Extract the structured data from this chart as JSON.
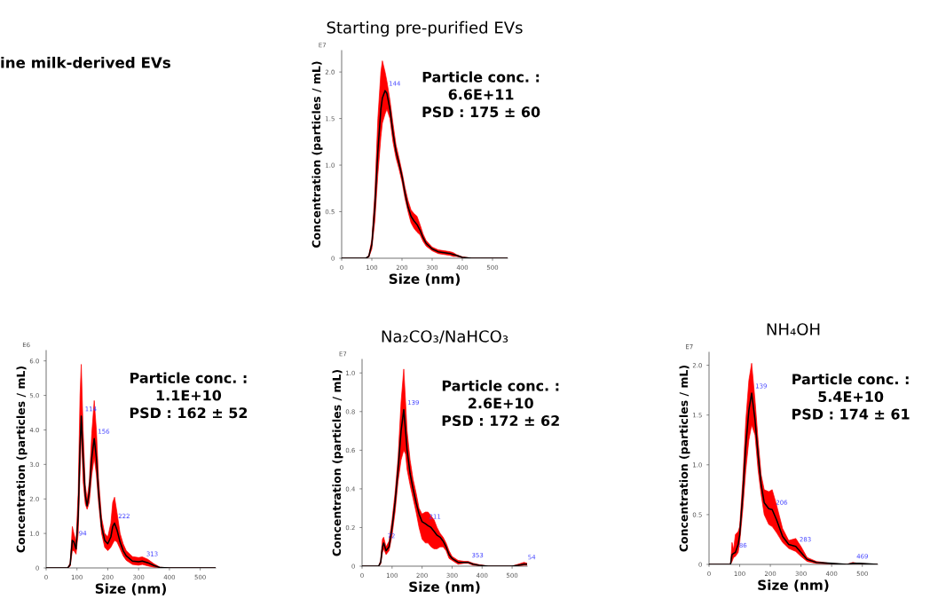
{
  "chart_data": [
    {
      "type": "line",
      "title": "Starting pre-purified EVs",
      "xlabel": "Size (nm)",
      "ylabel": "Concentration (particles / mL)",
      "xlim": [
        0,
        550
      ],
      "xticks": [
        0,
        100,
        200,
        300,
        400,
        500
      ],
      "ylim": [
        0,
        2.23
      ],
      "yticks": [
        0,
        {
          "value": 0.5,
          "label": "0.5"
        },
        {
          "value": 1,
          "label": "1.0"
        },
        {
          "value": 1.5,
          "label": "1.5"
        },
        {
          "value": 2,
          "label": "2.0"
        }
      ],
      "grid": false,
      "x": [
        0,
        60,
        80,
        90,
        100,
        110,
        120,
        130,
        135,
        144,
        150,
        160,
        170,
        180,
        190,
        200,
        210,
        220,
        230,
        240,
        250,
        260,
        270,
        280,
        300,
        320,
        340,
        360,
        370,
        380,
        400,
        430,
        460,
        500,
        550
      ],
      "series": [
        {
          "color": "#000000",
          "values": [
            0,
            0,
            0,
            0.02,
            0.15,
            0.55,
            1.15,
            1.6,
            1.72,
            1.8,
            1.77,
            1.6,
            1.35,
            1.15,
            1.02,
            0.88,
            0.7,
            0.55,
            0.45,
            0.4,
            0.36,
            0.3,
            0.22,
            0.16,
            0.1,
            0.07,
            0.06,
            0.05,
            0.04,
            0.03,
            0.01,
            0,
            0,
            0,
            0
          ],
          "upper": [
            0,
            0,
            0,
            0.03,
            0.2,
            0.7,
            1.5,
            2.0,
            2.12,
            2.0,
            1.9,
            1.7,
            1.45,
            1.22,
            1.08,
            0.93,
            0.76,
            0.62,
            0.52,
            0.48,
            0.45,
            0.36,
            0.26,
            0.19,
            0.12,
            0.09,
            0.08,
            0.07,
            0.06,
            0.04,
            0.015,
            0,
            0,
            0,
            0
          ],
          "lower": [
            0,
            0,
            0,
            0.01,
            0.1,
            0.4,
            0.9,
            1.3,
            1.45,
            1.55,
            1.6,
            1.5,
            1.25,
            1.08,
            0.96,
            0.82,
            0.64,
            0.5,
            0.38,
            0.32,
            0.28,
            0.25,
            0.18,
            0.13,
            0.08,
            0.05,
            0.04,
            0.03,
            0.02,
            0.02,
            0.005,
            0,
            0,
            0,
            0
          ]
        }
      ],
      "annotations": [
        "E7",
        "Particle conc. :\n6.6E+11\nPSD : 175 ± 60",
        "ine milk-derived EVs",
        {
          "text": "144",
          "x": 144,
          "y": 1.8
        }
      ]
    },
    {
      "type": "line",
      "xlabel": "Size (nm)",
      "ylabel": "Concentration (particles / mL)",
      "xlim": [
        0,
        550
      ],
      "xticks": [
        0,
        100,
        200,
        300,
        400,
        500
      ],
      "ylim": [
        0,
        6.3
      ],
      "yticks": [
        0,
        {
          "value": 1,
          "label": "1.0"
        },
        {
          "value": 2,
          "label": "2.0"
        },
        {
          "value": 3,
          "label": "3.0"
        },
        {
          "value": 4,
          "label": "4.0"
        },
        {
          "value": 5,
          "label": "5.0"
        },
        {
          "value": 6,
          "label": "6.0"
        }
      ],
      "grid": false,
      "x": [
        0,
        60,
        70,
        78,
        85,
        90,
        97,
        104,
        110,
        114,
        120,
        127,
        133,
        140,
        148,
        156,
        163,
        170,
        180,
        190,
        200,
        210,
        216,
        222,
        230,
        240,
        250,
        260,
        280,
        300,
        312,
        330,
        350,
        370,
        400,
        450,
        550
      ],
      "series": [
        {
          "color": "#000000",
          "values": [
            0,
            0,
            0,
            0.1,
            0.8,
            0.75,
            0.55,
            1.5,
            3.5,
            4.4,
            3.2,
            2.1,
            1.8,
            2.2,
            3.2,
            3.75,
            3.2,
            2.2,
            1.2,
            0.8,
            0.7,
            0.9,
            1.2,
            1.3,
            1.1,
            0.75,
            0.5,
            0.35,
            0.2,
            0.18,
            0.2,
            0.15,
            0.07,
            0.01,
            0,
            0,
            0
          ],
          "upper": [
            0,
            0,
            0,
            0.15,
            1.2,
            1.0,
            0.75,
            2.2,
            5.0,
            5.9,
            4.0,
            2.4,
            2.0,
            2.5,
            3.9,
            4.85,
            4.0,
            2.6,
            1.45,
            1.0,
            0.9,
            1.3,
            1.9,
            2.05,
            1.6,
            1.0,
            0.7,
            0.5,
            0.33,
            0.3,
            0.32,
            0.25,
            0.12,
            0.02,
            0,
            0,
            0
          ],
          "lower": [
            0,
            0,
            0,
            0.05,
            0.5,
            0.5,
            0.4,
            1.0,
            2.8,
            3.9,
            2.5,
            1.85,
            1.7,
            1.9,
            2.7,
            3.2,
            2.7,
            1.9,
            1.0,
            0.6,
            0.5,
            0.6,
            0.7,
            0.8,
            0.75,
            0.55,
            0.35,
            0.22,
            0.1,
            0.08,
            0.1,
            0.06,
            0.02,
            0,
            0,
            0,
            0
          ]
        }
      ],
      "annotations": [
        "E6",
        "Particle conc. :\n1.1E+10\nPSD : 162 ± 52",
        {
          "text": "94",
          "x": 94,
          "y": 0.8
        },
        {
          "text": "114",
          "x": 114,
          "y": 4.4
        },
        {
          "text": "156",
          "x": 156,
          "y": 3.75
        },
        {
          "text": "222",
          "x": 222,
          "y": 1.3
        },
        {
          "text": "313",
          "x": 313,
          "y": 0.2
        }
      ]
    },
    {
      "type": "line",
      "title": "Na₂CO₃/NaHCO₃",
      "xlabel": "Size (nm)",
      "ylabel": "Concentration (particles / mL)",
      "xlim": [
        0,
        550
      ],
      "xticks": [
        0,
        100,
        200,
        300,
        400,
        500
      ],
      "ylim": [
        0,
        1.07
      ],
      "yticks": [
        0,
        {
          "value": 0.2,
          "label": "0.2"
        },
        {
          "value": 0.4,
          "label": "0.4"
        },
        {
          "value": 0.6,
          "label": "0.6"
        },
        {
          "value": 0.8,
          "label": "0.8"
        },
        {
          "value": 1,
          "label": "1.0"
        }
      ],
      "grid": false,
      "x": [
        0,
        55,
        62,
        68,
        72,
        80,
        90,
        100,
        110,
        120,
        130,
        139,
        145,
        150,
        160,
        170,
        180,
        190,
        200,
        211,
        220,
        230,
        240,
        250,
        260,
        270,
        280,
        290,
        300,
        320,
        340,
        353,
        370,
        390,
        420,
        500,
        520,
        540,
        550
      ],
      "series": [
        {
          "color": "#000000",
          "values": [
            0,
            0,
            0.02,
            0.1,
            0.12,
            0.08,
            0.1,
            0.2,
            0.33,
            0.5,
            0.7,
            0.81,
            0.7,
            0.6,
            0.48,
            0.4,
            0.33,
            0.27,
            0.23,
            0.22,
            0.21,
            0.2,
            0.18,
            0.16,
            0.15,
            0.13,
            0.1,
            0.06,
            0.04,
            0.02,
            0.02,
            0.02,
            0.01,
            0.005,
            0,
            0,
            0.005,
            0.01,
            0.01
          ],
          "upper": [
            0,
            0,
            0.03,
            0.14,
            0.15,
            0.1,
            0.13,
            0.24,
            0.38,
            0.56,
            0.85,
            1.02,
            0.85,
            0.7,
            0.55,
            0.45,
            0.38,
            0.3,
            0.27,
            0.28,
            0.28,
            0.26,
            0.24,
            0.2,
            0.17,
            0.15,
            0.12,
            0.08,
            0.05,
            0.03,
            0.025,
            0.025,
            0.015,
            0.008,
            0,
            0,
            0.01,
            0.02,
            0.015
          ],
          "lower": [
            0,
            0,
            0.01,
            0.07,
            0.09,
            0.06,
            0.08,
            0.16,
            0.28,
            0.44,
            0.55,
            0.6,
            0.58,
            0.5,
            0.42,
            0.35,
            0.28,
            0.2,
            0.14,
            0.12,
            0.12,
            0.1,
            0.09,
            0.09,
            0.1,
            0.1,
            0.08,
            0.04,
            0.03,
            0.01,
            0.015,
            0.015,
            0.005,
            0.002,
            0,
            0,
            0,
            0.005,
            0.005
          ]
        }
      ],
      "annotations": [
        "E7",
        "Particle conc. :\n2.6E+10\nPSD : 172 ± 62",
        {
          "text": "72",
          "x": 72,
          "y": 0.12
        },
        {
          "text": "139",
          "x": 139,
          "y": 0.81
        },
        {
          "text": "211",
          "x": 211,
          "y": 0.22
        },
        {
          "text": "353",
          "x": 353,
          "y": 0.02
        },
        {
          "text": "54",
          "x": 540,
          "y": 0.01
        }
      ]
    },
    {
      "type": "line",
      "title": "NH₄OH",
      "xlabel": "Size (nm)",
      "ylabel": "Concentration (particles / mL)",
      "xlim": [
        0,
        550
      ],
      "xticks": [
        0,
        100,
        200,
        300,
        400,
        500
      ],
      "ylim": [
        0,
        2.13
      ],
      "yticks": [
        0,
        {
          "value": 0.5,
          "label": "0.5"
        },
        {
          "value": 1,
          "label": "1.0"
        },
        {
          "value": 1.5,
          "label": "1.5"
        },
        {
          "value": 2,
          "label": "2.0"
        }
      ],
      "grid": false,
      "x": [
        0,
        70,
        75,
        80,
        86,
        95,
        100,
        110,
        120,
        130,
        139,
        150,
        160,
        170,
        180,
        195,
        206,
        220,
        240,
        260,
        283,
        300,
        320,
        350,
        400,
        450,
        469,
        490,
        550
      ],
      "series": [
        {
          "color": "#000000",
          "values": [
            0,
            0,
            0.1,
            0.11,
            0.12,
            0.2,
            0.3,
            0.7,
            1.2,
            1.55,
            1.72,
            1.45,
            1.1,
            0.8,
            0.62,
            0.56,
            0.55,
            0.45,
            0.28,
            0.2,
            0.18,
            0.12,
            0.05,
            0.02,
            0.01,
            0,
            0.01,
            0.01,
            0
          ],
          "upper": [
            0,
            0,
            0.22,
            0.15,
            0.3,
            0.33,
            0.38,
            0.85,
            1.45,
            1.85,
            2.02,
            1.65,
            1.25,
            0.9,
            0.75,
            0.73,
            0.75,
            0.6,
            0.36,
            0.24,
            0.26,
            0.18,
            0.07,
            0.03,
            0.008,
            0,
            0.02,
            0.008,
            0
          ],
          "lower": [
            0,
            0,
            0.03,
            0.07,
            0.08,
            0.12,
            0.22,
            0.55,
            0.95,
            1.25,
            1.4,
            1.3,
            0.95,
            0.7,
            0.5,
            0.4,
            0.38,
            0.32,
            0.22,
            0.16,
            0.13,
            0.08,
            0.03,
            0.01,
            0.002,
            0,
            0.005,
            0.002,
            0
          ]
        }
      ],
      "annotations": [
        "E7",
        "Particle conc. :\n5.4E+10\nPSD : 174 ± 61",
        {
          "text": "86",
          "x": 86,
          "y": 0.12
        },
        {
          "text": "139",
          "x": 139,
          "y": 1.72
        },
        {
          "text": "206",
          "x": 206,
          "y": 0.55
        },
        {
          "text": "283",
          "x": 283,
          "y": 0.18
        },
        {
          "text": "469",
          "x": 469,
          "y": 0.01
        }
      ]
    }
  ]
}
